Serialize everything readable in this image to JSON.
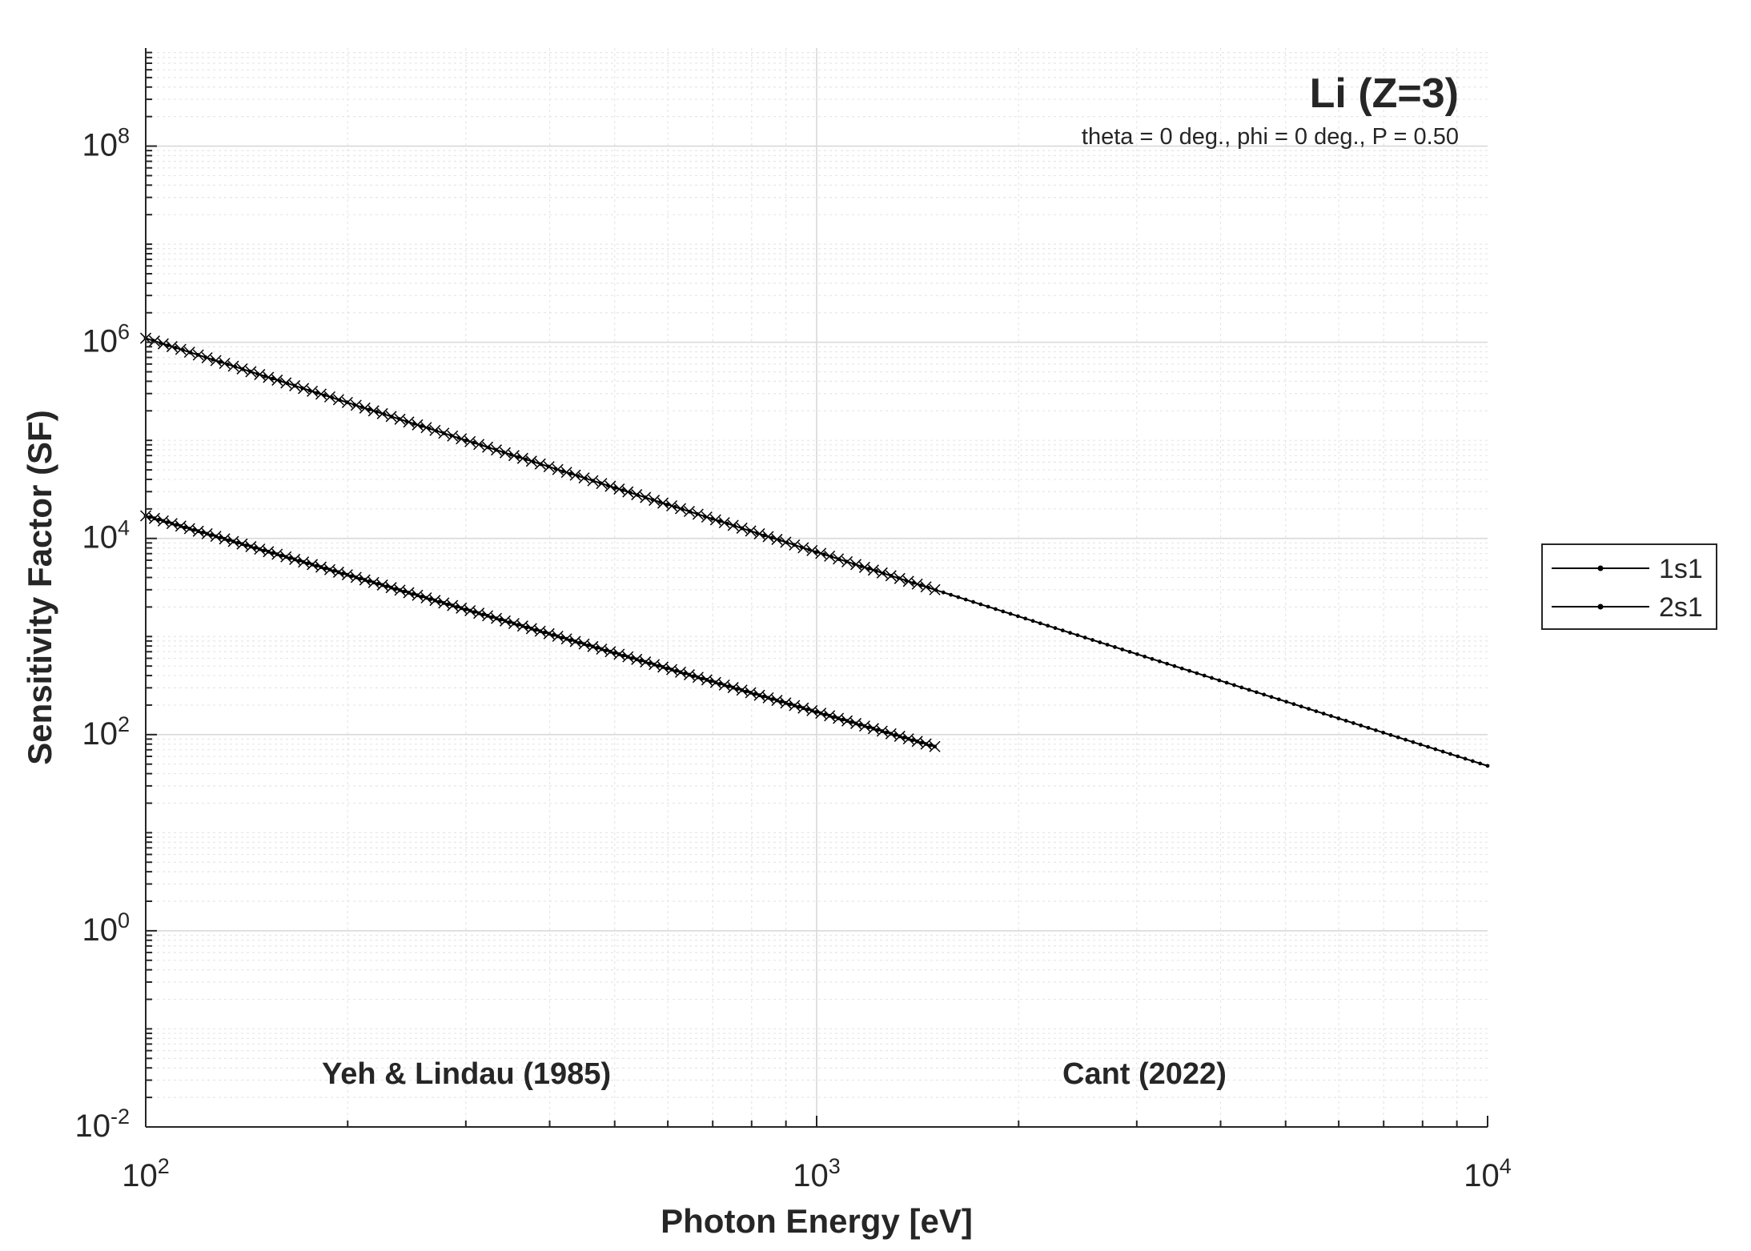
{
  "chart_data": {
    "type": "line",
    "title": "Li (Z=3)",
    "subtitle": "theta = 0 deg., phi = 0 deg., P = 0.50",
    "xlabel": "Photon Energy [eV]",
    "ylabel": "Sensitivity Factor (SF)",
    "x_scale": "log",
    "y_scale": "log",
    "xlim": [
      100,
      10000
    ],
    "ylim": [
      0.01,
      1000000000
    ],
    "grid": true,
    "minor_grid": true,
    "x_ticks": [
      {
        "value": 100,
        "base": "10",
        "exp": "2"
      },
      {
        "value": 1000,
        "base": "10",
        "exp": "3"
      },
      {
        "value": 10000,
        "base": "10",
        "exp": "4"
      }
    ],
    "y_ticks": [
      {
        "value": 0.01,
        "base": "10",
        "exp": "-2"
      },
      {
        "value": 1,
        "base": "10",
        "exp": "0"
      },
      {
        "value": 100,
        "base": "10",
        "exp": "2"
      },
      {
        "value": 10000,
        "base": "10",
        "exp": "4"
      },
      {
        "value": 1000000,
        "base": "10",
        "exp": "6"
      },
      {
        "value": 100000000,
        "base": "10",
        "exp": "8"
      }
    ],
    "legend_position": "outside-right",
    "annotations": [
      {
        "text": "Yeh & Lindau (1985)",
        "x": 240,
        "y": 0.028
      },
      {
        "text": "Cant (2022)",
        "x": 3000,
        "y": 0.028
      }
    ],
    "series": [
      {
        "name": "1s1",
        "source": "Cant (2022)",
        "marker": "dot",
        "x_range": [
          100,
          10000
        ],
        "power_law": {
          "x0": 100,
          "y0": 1100000,
          "exponent": -2.18
        }
      },
      {
        "name": "2s1",
        "source": "Cant (2022)",
        "marker": "dot",
        "x_range": [
          100,
          1500
        ],
        "power_law": {
          "x0": 100,
          "y0": 17000,
          "exponent": -2.0
        }
      },
      {
        "name": "1s1 (Yeh & Lindau)",
        "source": "Yeh & Lindau (1985)",
        "marker": "x",
        "x_range": [
          100,
          1500
        ],
        "power_law": {
          "x0": 100,
          "y0": 1100000,
          "exponent": -2.18
        }
      },
      {
        "name": "2s1 (Yeh & Lindau)",
        "source": "Yeh & Lindau (1985)",
        "marker": "x",
        "x_range": [
          100,
          1500
        ],
        "power_law": {
          "x0": 100,
          "y0": 17000,
          "exponent": -2.0
        }
      }
    ]
  },
  "legend": {
    "items": [
      {
        "label": "1s1"
      },
      {
        "label": "2s1"
      }
    ]
  },
  "colors": {
    "line": "#000000",
    "axis": "#262626",
    "grid_major": "#d9d9d9",
    "grid_minor": "#e6e6e6",
    "background": "#ffffff"
  }
}
